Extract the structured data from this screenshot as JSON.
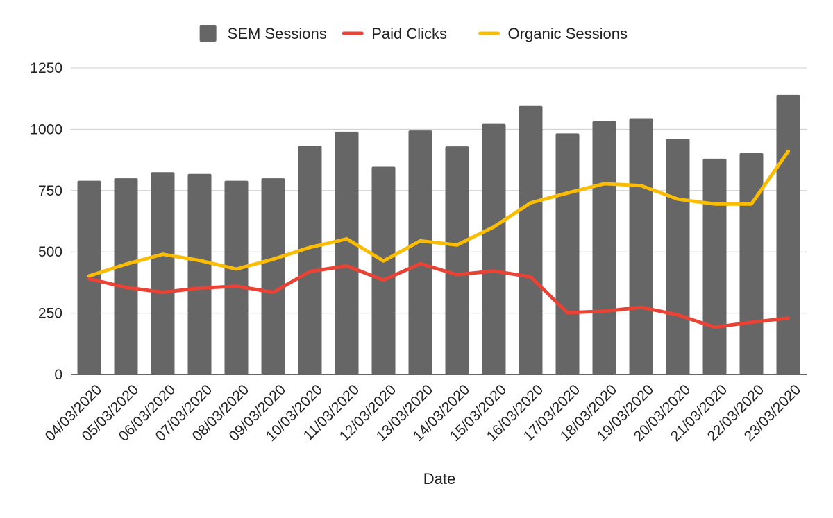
{
  "chart_data": {
    "type": "bar",
    "title": "",
    "xlabel": "Date",
    "ylabel": "",
    "ylim": [
      0,
      1250
    ],
    "yticks": [
      0,
      250,
      500,
      750,
      1000,
      1250
    ],
    "grid": true,
    "legend_position": "top-center",
    "categories": [
      "04/03/2020",
      "05/03/2020",
      "06/03/2020",
      "07/03/2020",
      "08/03/2020",
      "09/03/2020",
      "10/03/2020",
      "11/03/2020",
      "12/03/2020",
      "13/03/2020",
      "14/03/2020",
      "15/03/2020",
      "16/03/2020",
      "17/03/2020",
      "18/03/2020",
      "19/03/2020",
      "20/03/2020",
      "21/03/2020",
      "22/03/2020",
      "23/03/2020"
    ],
    "series": [
      {
        "name": "SEM Sessions",
        "type": "bar",
        "color": "#666666",
        "values": [
          790,
          800,
          825,
          818,
          790,
          800,
          932,
          990,
          847,
          995,
          930,
          1022,
          1095,
          983,
          1033,
          1045,
          960,
          880,
          902,
          1140
        ]
      },
      {
        "name": "Paid Clicks",
        "type": "line",
        "color": "#ea4335",
        "values": [
          390,
          355,
          335,
          352,
          360,
          335,
          420,
          443,
          385,
          452,
          407,
          422,
          398,
          252,
          258,
          274,
          243,
          193,
          213,
          230
        ]
      },
      {
        "name": "Organic Sessions",
        "type": "line",
        "color": "#fbbc04",
        "values": [
          402,
          450,
          490,
          465,
          430,
          470,
          518,
          553,
          463,
          545,
          528,
          602,
          700,
          740,
          778,
          770,
          715,
          695,
          695,
          910
        ]
      }
    ]
  }
}
